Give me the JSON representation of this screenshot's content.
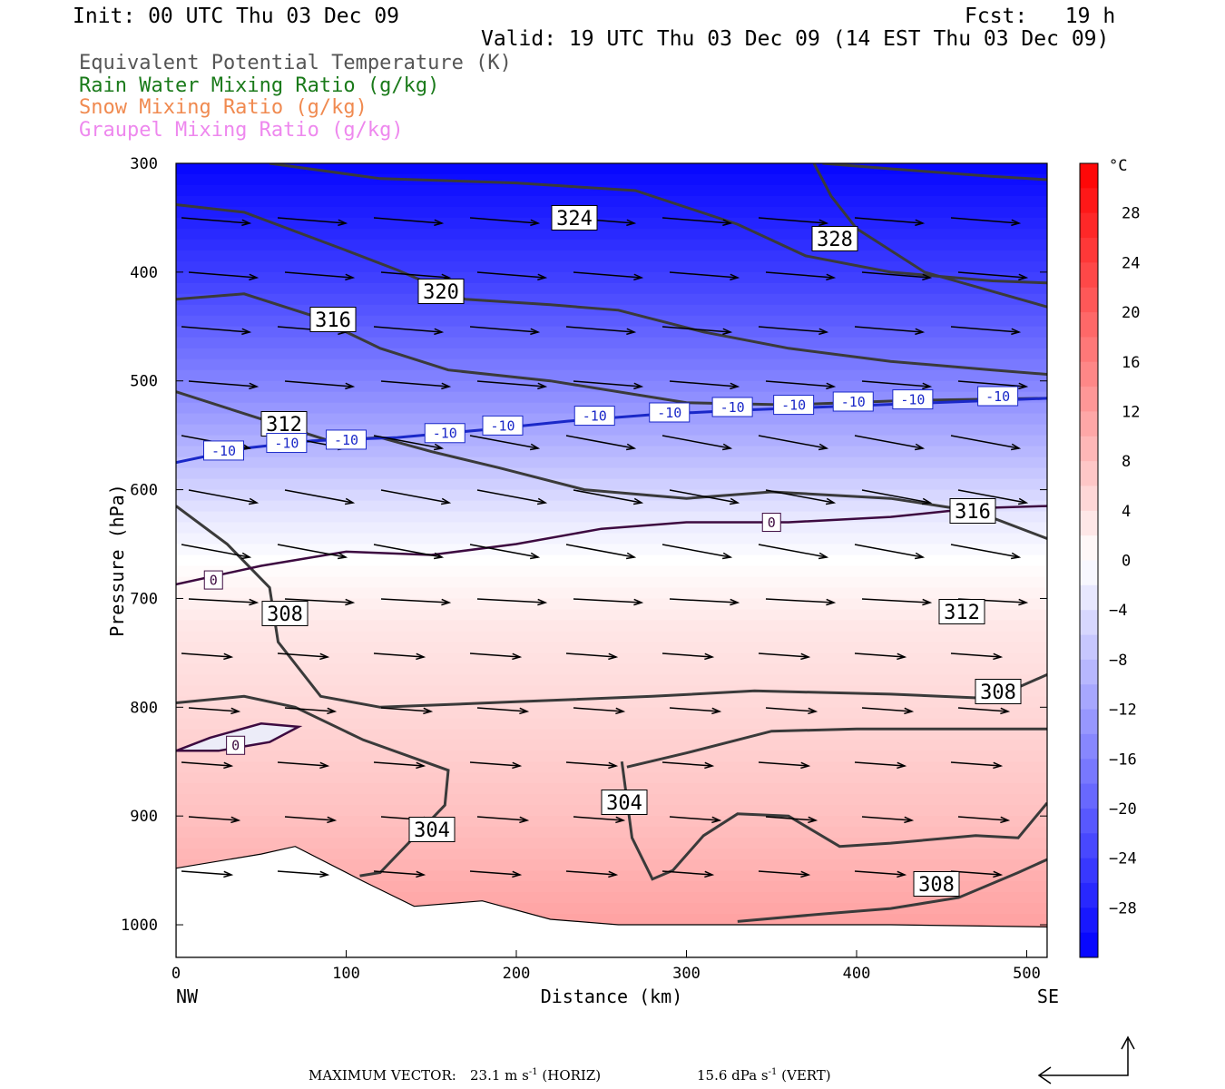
{
  "header": {
    "init": "Init: 00 UTC Thu 03 Dec 09",
    "fcst": "Fcst:   19 h",
    "valid": "Valid: 19 UTC Thu 03 Dec 09 (14 EST Thu 03 Dec 09)"
  },
  "legend": {
    "items": [
      {
        "label": "Equivalent Potential Temperature (K)",
        "color": "#555555"
      },
      {
        "label": "Rain Water Mixing Ratio (g/kg)",
        "color": "#1a7a1a"
      },
      {
        "label": "Snow Mixing Ratio (g/kg)",
        "color": "#f08a50"
      },
      {
        "label": "Graupel Mixing Ratio (g/kg)",
        "color": "#ee88ee"
      }
    ]
  },
  "chart_data": {
    "type": "cross-section contour",
    "xlabel": "Distance (km)",
    "ylabel": "Pressure (hPa)",
    "xlim": [
      0,
      512
    ],
    "ylim": [
      1030,
      300
    ],
    "x_ticks": [
      0,
      100,
      200,
      300,
      400,
      500
    ],
    "y_ticks": [
      300,
      400,
      500,
      600,
      700,
      800,
      900,
      1000
    ],
    "x_end_labels": {
      "left": "NW",
      "right": "SE"
    },
    "colorbar": {
      "unit": "°C",
      "ticks": [
        28,
        24,
        20,
        16,
        12,
        8,
        4,
        0,
        -4,
        -8,
        -12,
        -16,
        -20,
        -24,
        -28
      ],
      "min": -32,
      "max": 32
    },
    "temperature_field": [
      {
        "p": 300,
        "t": -31
      },
      {
        "p": 400,
        "t": -24
      },
      {
        "p": 500,
        "t": -15
      },
      {
        "p": 560,
        "t": -9
      },
      {
        "p": 620,
        "t": -3
      },
      {
        "p": 660,
        "t": 0
      },
      {
        "p": 720,
        "t": 3
      },
      {
        "p": 800,
        "t": 5
      },
      {
        "p": 900,
        "t": 8
      },
      {
        "p": 1000,
        "t": 12
      }
    ],
    "theta_e_contours": [
      {
        "label": "324",
        "points": [
          [
            55,
            300
          ],
          [
            120,
            314
          ],
          [
            200,
            318
          ],
          [
            270,
            325
          ],
          [
            330,
            356
          ],
          [
            370,
            385
          ],
          [
            420,
            400
          ],
          [
            480,
            408
          ],
          [
            512,
            410
          ]
        ]
      },
      {
        "label": "328",
        "points": [
          [
            380,
            300
          ],
          [
            420,
            305
          ],
          [
            480,
            312
          ],
          [
            512,
            315
          ]
        ],
        "extra": [
          [
            375,
            300
          ],
          [
            385,
            330
          ],
          [
            400,
            360
          ],
          [
            440,
            400
          ],
          [
            512,
            432
          ]
        ]
      },
      {
        "label": "320",
        "points": [
          [
            0,
            338
          ],
          [
            40,
            345
          ],
          [
            100,
            380
          ],
          [
            130,
            398
          ],
          [
            170,
            425
          ],
          [
            220,
            430
          ],
          [
            260,
            435
          ],
          [
            310,
            455
          ],
          [
            360,
            470
          ],
          [
            420,
            482
          ],
          [
            480,
            490
          ],
          [
            512,
            494
          ]
        ]
      },
      {
        "label": "316",
        "points": [
          [
            0,
            425
          ],
          [
            40,
            420
          ],
          [
            80,
            440
          ],
          [
            120,
            470
          ],
          [
            160,
            490
          ],
          [
            220,
            500
          ],
          [
            300,
            520
          ],
          [
            360,
            522
          ],
          [
            430,
            518
          ],
          [
            512,
            516
          ]
        ]
      },
      {
        "label": "312",
        "points": [
          [
            0,
            510
          ],
          [
            50,
            535
          ],
          [
            90,
            555
          ],
          [
            120,
            552
          ],
          [
            150,
            565
          ],
          [
            190,
            580
          ],
          [
            240,
            600
          ],
          [
            300,
            608
          ],
          [
            350,
            602
          ],
          [
            420,
            608
          ],
          [
            470,
            620
          ],
          [
            512,
            645
          ]
        ]
      },
      {
        "label": "308",
        "points": [
          [
            0,
            615
          ],
          [
            30,
            650
          ],
          [
            55,
            690
          ],
          [
            60,
            740
          ],
          [
            85,
            790
          ],
          [
            120,
            800
          ],
          [
            200,
            795
          ],
          [
            280,
            790
          ],
          [
            340,
            785
          ],
          [
            420,
            788
          ],
          [
            480,
            792
          ],
          [
            512,
            770
          ]
        ]
      },
      {
        "label": "304",
        "points": [
          [
            0,
            796
          ],
          [
            40,
            790
          ],
          [
            70,
            800
          ],
          [
            110,
            830
          ],
          [
            160,
            858
          ],
          [
            158,
            890
          ],
          [
            120,
            952
          ],
          [
            108,
            955
          ]
        ]
      },
      {
        "label": "304",
        "points": [
          [
            265,
            855
          ],
          [
            300,
            842
          ],
          [
            350,
            822
          ],
          [
            400,
            820
          ],
          [
            470,
            820
          ],
          [
            512,
            820
          ]
        ],
        "extra2": [
          [
            262,
            850
          ],
          [
            268,
            920
          ],
          [
            280,
            958
          ],
          [
            292,
            950
          ],
          [
            310,
            918
          ],
          [
            330,
            898
          ],
          [
            360,
            900
          ],
          [
            390,
            928
          ],
          [
            420,
            925
          ],
          [
            470,
            918
          ],
          [
            495,
            920
          ],
          [
            512,
            888
          ]
        ]
      },
      {
        "label": "308",
        "points": [
          [
            330,
            997
          ],
          [
            380,
            990
          ],
          [
            420,
            985
          ],
          [
            460,
            975
          ],
          [
            495,
            952
          ],
          [
            512,
            940
          ]
        ]
      }
    ],
    "isotherm_minus10": {
      "label": "-10",
      "points": [
        [
          0,
          575
        ],
        [
          40,
          562
        ],
        [
          80,
          555
        ],
        [
          130,
          552
        ],
        [
          180,
          545
        ],
        [
          230,
          537
        ],
        [
          280,
          531
        ],
        [
          330,
          527
        ],
        [
          380,
          524
        ],
        [
          430,
          521
        ],
        [
          480,
          518
        ],
        [
          512,
          516
        ]
      ],
      "label_positions": [
        [
          28,
          564
        ],
        [
          65,
          557
        ],
        [
          100,
          554
        ],
        [
          158,
          548
        ],
        [
          192,
          541
        ],
        [
          246,
          532
        ],
        [
          290,
          529
        ],
        [
          327,
          524
        ],
        [
          363,
          522
        ],
        [
          398,
          519
        ],
        [
          433,
          517
        ],
        [
          483,
          514
        ]
      ]
    },
    "isotherm_zero": {
      "label": "0",
      "points": [
        [
          0,
          687
        ],
        [
          50,
          670
        ],
        [
          100,
          657
        ],
        [
          150,
          660
        ],
        [
          200,
          650
        ],
        [
          250,
          636
        ],
        [
          300,
          630
        ],
        [
          360,
          630
        ],
        [
          420,
          625
        ],
        [
          470,
          617
        ],
        [
          512,
          615
        ]
      ],
      "loop": [
        [
          0,
          840
        ],
        [
          20,
          828
        ],
        [
          50,
          815
        ],
        [
          72,
          818
        ],
        [
          55,
          832
        ],
        [
          25,
          840
        ],
        [
          0,
          840
        ]
      ],
      "label_positions": [
        [
          22,
          683
        ],
        [
          350,
          630
        ],
        [
          35,
          835
        ]
      ]
    },
    "surface": [
      [
        0,
        948
      ],
      [
        50,
        935
      ],
      [
        70,
        928
      ],
      [
        110,
        960
      ],
      [
        140,
        983
      ],
      [
        180,
        978
      ],
      [
        220,
        995
      ],
      [
        260,
        1000
      ],
      [
        320,
        1000
      ],
      [
        420,
        1000
      ],
      [
        512,
        1002
      ]
    ],
    "footer": {
      "max_vector_label": "MAXIMUM VECTOR:",
      "horiz_value": "23.1 m s",
      "horiz_sup": "-1",
      "horiz_tag": "(HORIZ)",
      "vert_value": "15.6 dPa s",
      "vert_sup": "-1",
      "vert_tag": "(VERT)"
    }
  }
}
